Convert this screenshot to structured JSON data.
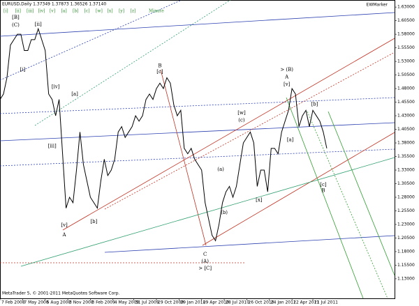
{
  "chart_data": {
    "type": "line",
    "title": "EURUSD,Daily 1.37349 1.37873 1.36526 1.37140",
    "indicator": "EWMarker",
    "wave_buttons": [
      "[i]",
      "[ii]",
      "[iii]",
      "[iv]",
      "[v]",
      "[a]",
      "[b]",
      "[c]",
      "[w]",
      "[x]",
      "[y]",
      "[z]"
    ],
    "degree": "Minute",
    "footer": "MetaTrader 5, © 2001-2011 MetaQuotes Software Corp.",
    "color": "#000000",
    "x": [
      0,
      2,
      4,
      6,
      8,
      10,
      12,
      14,
      16,
      18,
      20,
      22,
      24,
      26,
      28,
      30,
      32,
      34,
      36,
      38,
      40,
      42,
      44,
      46,
      48,
      50,
      52,
      54,
      56,
      58,
      60,
      62,
      64,
      66,
      68,
      70,
      72,
      74,
      76,
      78,
      80,
      82,
      84,
      86,
      88,
      90,
      92,
      94,
      96,
      98,
      100,
      102,
      104,
      106,
      108,
      110,
      112,
      114,
      116,
      118,
      120,
      122,
      124,
      126,
      128,
      130,
      132,
      134,
      136,
      138,
      140,
      142,
      144,
      146,
      148,
      150,
      152,
      154,
      156,
      158,
      160,
      162,
      164,
      166,
      168,
      170,
      172,
      174,
      176,
      178,
      180,
      182,
      184,
      186,
      188
    ],
    "values": [
      1.46,
      1.47,
      1.5,
      1.56,
      1.57,
      1.58,
      1.58,
      1.55,
      1.55,
      1.57,
      1.57,
      1.59,
      1.57,
      1.55,
      1.47,
      1.46,
      1.43,
      1.46,
      1.36,
      1.26,
      1.28,
      1.27,
      1.33,
      1.4,
      1.34,
      1.31,
      1.28,
      1.27,
      1.26,
      1.31,
      1.35,
      1.32,
      1.33,
      1.35,
      1.4,
      1.41,
      1.39,
      1.4,
      1.41,
      1.43,
      1.42,
      1.43,
      1.46,
      1.47,
      1.46,
      1.48,
      1.49,
      1.48,
      1.5,
      1.49,
      1.45,
      1.43,
      1.44,
      1.37,
      1.36,
      1.37,
      1.35,
      1.34,
      1.33,
      1.27,
      1.24,
      1.21,
      1.2,
      1.23,
      1.27,
      1.29,
      1.3,
      1.28,
      1.3,
      1.34,
      1.38,
      1.39,
      1.4,
      1.38,
      1.3,
      1.33,
      1.33,
      1.29,
      1.37,
      1.37,
      1.36,
      1.4,
      1.42,
      1.44,
      1.48,
      1.47,
      1.41,
      1.43,
      1.44,
      1.41,
      1.44,
      1.43,
      1.42,
      1.4,
      1.37
    ],
    "xlim": [
      0,
      227
    ],
    "ylim": [
      1.094,
      1.643
    ],
    "xticks": [
      {
        "value": 0,
        "label": "7 Feb 2008"
      },
      {
        "value": 13,
        "label": "7 May 2008"
      },
      {
        "value": 26,
        "label": "5 Aug 2008"
      },
      {
        "value": 39,
        "label": "3 Nov 2008"
      },
      {
        "value": 52,
        "label": "3 Feb 2009"
      },
      {
        "value": 65,
        "label": "4 May 2009"
      },
      {
        "value": 77,
        "label": "31 Jul 2009"
      },
      {
        "value": 90,
        "label": "29 Oct 2009"
      },
      {
        "value": 103,
        "label": "29 Jan 2010"
      },
      {
        "value": 116,
        "label": "29 Apr 2010"
      },
      {
        "value": 129,
        "label": "28 Jul 2010"
      },
      {
        "value": 142,
        "label": "26 Oct 2010"
      },
      {
        "value": 155,
        "label": "24 Jan 2011"
      },
      {
        "value": 168,
        "label": "22 Apr 2011"
      },
      {
        "value": 180,
        "label": "21 Jul 2011"
      }
    ],
    "yticks": [
      {
        "value": 1.63,
        "label": "1.63000"
      },
      {
        "value": 1.605,
        "label": "1.60500"
      },
      {
        "value": 1.58,
        "label": "1.58000"
      },
      {
        "value": 1.555,
        "label": "1.55500"
      },
      {
        "value": 1.53,
        "label": "1.53000"
      },
      {
        "value": 1.505,
        "label": "1.50500"
      },
      {
        "value": 1.48,
        "label": "1.48000"
      },
      {
        "value": 1.455,
        "label": "1.45500"
      },
      {
        "value": 1.43,
        "label": "1.43000"
      },
      {
        "value": 1.405,
        "label": "1.40500"
      },
      {
        "value": 1.38,
        "label": "1.38000"
      },
      {
        "value": 1.355,
        "label": "1.35500"
      },
      {
        "value": 1.33,
        "label": "1.33000"
      },
      {
        "value": 1.305,
        "label": "1.30500"
      },
      {
        "value": 1.28,
        "label": "1.28000"
      },
      {
        "value": 1.255,
        "label": "1.25500"
      },
      {
        "value": 1.23,
        "label": "1.23000"
      },
      {
        "value": 1.205,
        "label": "1.20500"
      },
      {
        "value": 1.18,
        "label": "1.18000"
      },
      {
        "value": 1.155,
        "label": "1.15500"
      },
      {
        "value": 1.13,
        "label": "1.13000"
      }
    ],
    "annotations": [
      {
        "text": "[B]",
        "x": 9,
        "y": 1.611,
        "color": "#2a3fb0"
      },
      {
        "text": "(C)",
        "x": 9,
        "y": 1.597,
        "color": "#2a3fb0"
      },
      {
        "text": "[i]",
        "x": 13,
        "y": 1.515,
        "color": "#2f8f2f"
      },
      {
        "text": "[ii]",
        "x": 22,
        "y": 1.598,
        "color": "#2f8f2f"
      },
      {
        "text": "[iii]",
        "x": 30,
        "y": 1.374,
        "color": "#2f8f2f"
      },
      {
        "text": "[iv]",
        "x": 32,
        "y": 1.483,
        "color": "#2f8f2f"
      },
      {
        "text": "[v]",
        "x": 37,
        "y": 1.229,
        "color": "#2f8f2f"
      },
      {
        "text": "A",
        "x": 37,
        "y": 1.211,
        "color": "#b03020"
      },
      {
        "text": "[a]",
        "x": 43,
        "y": 1.47,
        "color": "#2f8f2f"
      },
      {
        "text": "[b]",
        "x": 54,
        "y": 1.235,
        "color": "#2f8f2f"
      },
      {
        "text": "B",
        "x": 92,
        "y": 1.522,
        "color": "#b03020"
      },
      {
        "text": "[c]",
        "x": 92,
        "y": 1.511,
        "color": "#2f8f2f"
      },
      {
        "text": "C",
        "x": 118,
        "y": 1.175,
        "color": "#b03020"
      },
      {
        "text": "(A)",
        "x": 118,
        "y": 1.162,
        "color": "#2a3fb0"
      },
      {
        "text": "> [C]",
        "x": 118,
        "y": 1.149,
        "color": "#2a3fb0"
      },
      {
        "text": "(a)",
        "x": 127,
        "y": 1.331,
        "color": "#3a7ad0"
      },
      {
        "text": "(b)",
        "x": 129,
        "y": 1.252,
        "color": "#3a7ad0"
      },
      {
        "text": "[w]",
        "x": 139,
        "y": 1.435,
        "color": "#2f8f2f"
      },
      {
        "text": "(c)",
        "x": 139,
        "y": 1.422,
        "color": "#3a7ad0"
      },
      {
        "text": "[x]",
        "x": 149,
        "y": 1.275,
        "color": "#2f8f2f"
      },
      {
        "text": "> (B)",
        "x": 165,
        "y": 1.515,
        "color": "#2a3fb0"
      },
      {
        "text": "A",
        "x": 165,
        "y": 1.501,
        "color": "#b03020"
      },
      {
        "text": "[v]",
        "x": 165,
        "y": 1.488,
        "color": "#2f8f2f"
      },
      {
        "text": "[a]",
        "x": 167,
        "y": 1.386,
        "color": "#2f8f2f"
      },
      {
        "text": "[b]",
        "x": 181,
        "y": 1.451,
        "color": "#2f8f2f"
      },
      {
        "text": "[c]",
        "x": 186,
        "y": 1.303,
        "color": "#2f8f2f"
      },
      {
        "text": "B",
        "x": 186,
        "y": 1.292,
        "color": "#b03020"
      }
    ]
  }
}
